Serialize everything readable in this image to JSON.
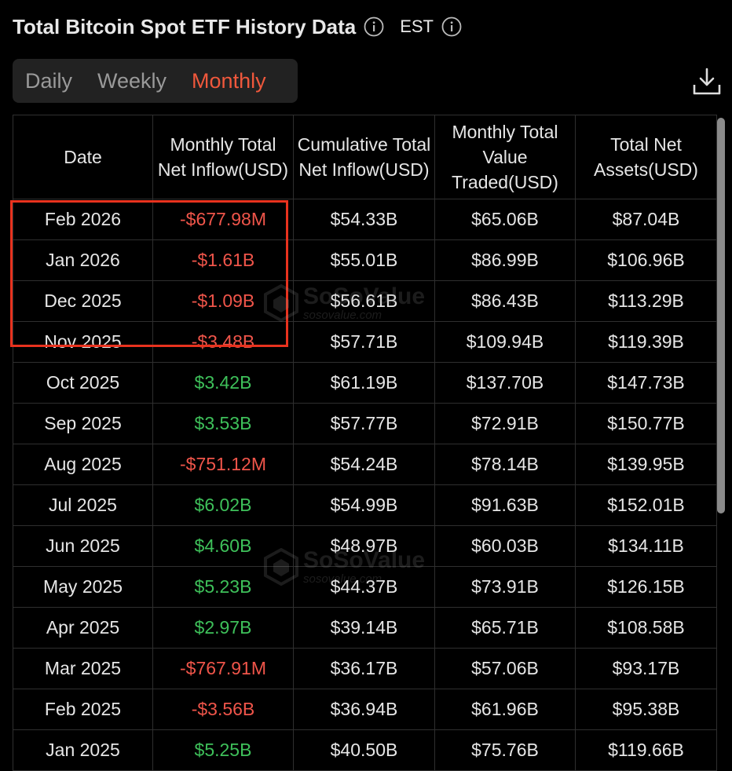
{
  "header": {
    "title": "Total Bitcoin Spot ETF History Data",
    "timezone": "EST"
  },
  "tabs": [
    {
      "label": "Daily",
      "active": false
    },
    {
      "label": "Weekly",
      "active": false
    },
    {
      "label": "Monthly",
      "active": true
    }
  ],
  "table": {
    "columns": [
      "Date",
      "Monthly Total Net Inflow(USD)",
      "Cumulative Total Net Inflow(USD)",
      "Monthly Total Value Traded(USD)",
      "Total Net Assets(USD)"
    ],
    "rows": [
      {
        "date": "Feb 2026",
        "net_inflow": "-$677.98M",
        "cumulative": "$54.33B",
        "traded": "$65.06B",
        "assets": "$87.04B"
      },
      {
        "date": "Jan 2026",
        "net_inflow": "-$1.61B",
        "cumulative": "$55.01B",
        "traded": "$86.99B",
        "assets": "$106.96B"
      },
      {
        "date": "Dec 2025",
        "net_inflow": "-$1.09B",
        "cumulative": "$56.61B",
        "traded": "$86.43B",
        "assets": "$113.29B"
      },
      {
        "date": "Nov 2025",
        "net_inflow": "-$3.48B",
        "cumulative": "$57.71B",
        "traded": "$109.94B",
        "assets": "$119.39B"
      },
      {
        "date": "Oct 2025",
        "net_inflow": "$3.42B",
        "cumulative": "$61.19B",
        "traded": "$137.70B",
        "assets": "$147.73B"
      },
      {
        "date": "Sep 2025",
        "net_inflow": "$3.53B",
        "cumulative": "$57.77B",
        "traded": "$72.91B",
        "assets": "$150.77B"
      },
      {
        "date": "Aug 2025",
        "net_inflow": "-$751.12M",
        "cumulative": "$54.24B",
        "traded": "$78.14B",
        "assets": "$139.95B"
      },
      {
        "date": "Jul 2025",
        "net_inflow": "$6.02B",
        "cumulative": "$54.99B",
        "traded": "$91.63B",
        "assets": "$152.01B"
      },
      {
        "date": "Jun 2025",
        "net_inflow": "$4.60B",
        "cumulative": "$48.97B",
        "traded": "$60.03B",
        "assets": "$134.11B"
      },
      {
        "date": "May 2025",
        "net_inflow": "$5.23B",
        "cumulative": "$44.37B",
        "traded": "$73.91B",
        "assets": "$126.15B"
      },
      {
        "date": "Apr 2025",
        "net_inflow": "$2.97B",
        "cumulative": "$39.14B",
        "traded": "$65.71B",
        "assets": "$108.58B"
      },
      {
        "date": "Mar 2025",
        "net_inflow": "-$767.91M",
        "cumulative": "$36.17B",
        "traded": "$57.06B",
        "assets": "$93.17B"
      },
      {
        "date": "Feb 2025",
        "net_inflow": "-$3.56B",
        "cumulative": "$36.94B",
        "traded": "$61.96B",
        "assets": "$95.38B"
      },
      {
        "date": "Jan 2025",
        "net_inflow": "$5.25B",
        "cumulative": "$40.50B",
        "traded": "$75.76B",
        "assets": "$119.66B"
      }
    ]
  },
  "watermark": {
    "brand": "SoSoValue",
    "url": "sosovalue.com"
  },
  "colors": {
    "positive": "#3ec05a",
    "negative": "#f0554a",
    "accent": "#f0583c",
    "highlight_border": "#e8321e"
  },
  "icons": {
    "info": "info-icon",
    "download": "download-icon",
    "logo": "sosovalue-logo-icon"
  }
}
